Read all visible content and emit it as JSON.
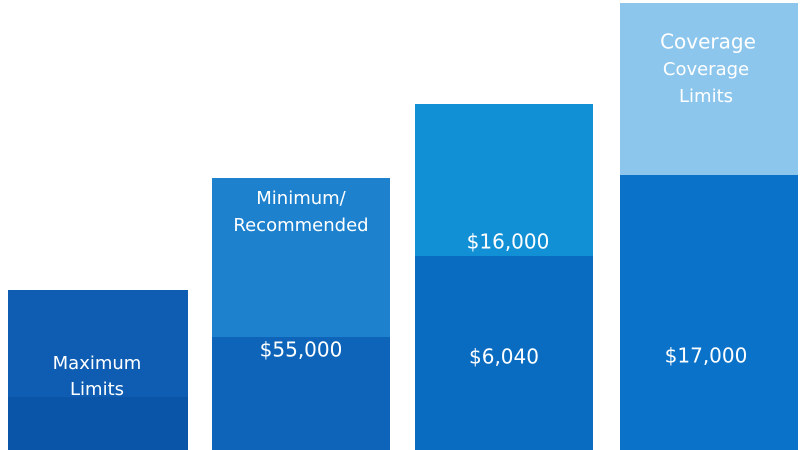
{
  "columns": [
    {
      "label": [
        "Maximum",
        "Limits"
      ]
    },
    {
      "label": [
        "Minimum/",
        "Recommended"
      ],
      "amount": "$55,000"
    },
    {
      "upper_amount": "$16,000",
      "amount": "$6,040"
    },
    {
      "label": [
        "Coverage",
        "Coverage",
        "Limits"
      ],
      "amount": "$17,000"
    }
  ]
}
